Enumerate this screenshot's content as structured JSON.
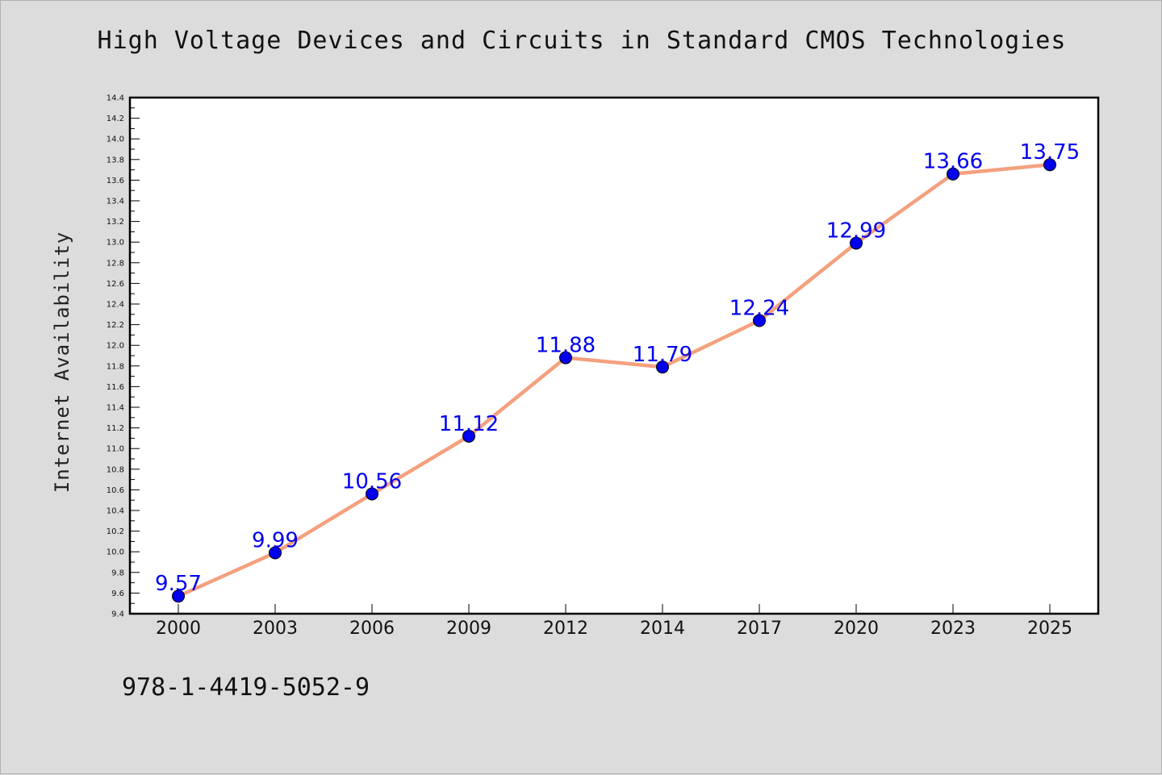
{
  "chart_data": {
    "type": "line",
    "title": "High Voltage Devices and Circuits in Standard CMOS Technologies",
    "xlabel": "",
    "ylabel": "Internet Availability",
    "categories": [
      "2000",
      "2003",
      "2006",
      "2009",
      "2012",
      "2014",
      "2017",
      "2020",
      "2023",
      "2025"
    ],
    "values": [
      9.57,
      9.99,
      10.56,
      11.12,
      11.88,
      11.79,
      12.24,
      12.99,
      13.66,
      13.75
    ],
    "data_labels": [
      "9.57",
      "9.99",
      "10.56",
      "11.12",
      "11.88",
      "11.79",
      "12.24",
      "12.99",
      "13.66",
      "13.75"
    ],
    "ylim": [
      9.4,
      14.4
    ],
    "yticks": [
      "9.4",
      "9.6",
      "9.8",
      "10.0",
      "10.2",
      "10.4",
      "10.6",
      "10.8",
      "11.0",
      "11.2",
      "11.4",
      "11.6",
      "11.8",
      "12.0",
      "12.2",
      "12.4",
      "12.6",
      "12.8",
      "13.0",
      "13.2",
      "13.4",
      "13.6",
      "13.8",
      "14.0",
      "14.2",
      "14.4"
    ],
    "grid": false,
    "line_color": "#f4a07e",
    "marker_color": "#0000ee",
    "label_color": "#0000ee"
  },
  "footer": {
    "isbn": "978-1-4419-5052-9"
  }
}
